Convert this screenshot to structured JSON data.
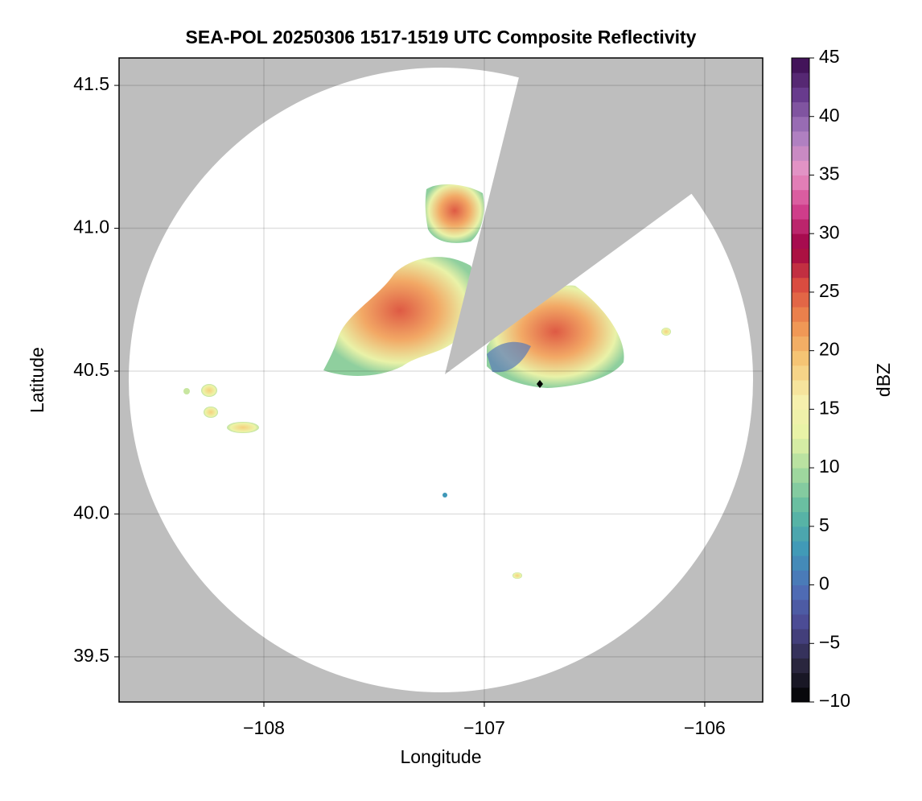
{
  "chart_data": {
    "type": "heatmap",
    "title": "SEA-POL 20250306 1517-1519 UTC Composite Reflectivity",
    "xlabel": "Longitude",
    "ylabel": "Latitude",
    "colorbar_label": "dBZ",
    "xlim": [
      -108.657,
      -105.737
    ],
    "ylim": [
      39.342,
      41.596
    ],
    "xticks": [
      {
        "value": -108,
        "label": "−108"
      },
      {
        "value": -107,
        "label": "−107"
      },
      {
        "value": -106,
        "label": "−106"
      }
    ],
    "yticks": [
      {
        "value": 39.5,
        "label": "39.5"
      },
      {
        "value": 40,
        "label": "40.0"
      },
      {
        "value": 40.5,
        "label": "40.5"
      },
      {
        "value": 41,
        "label": "41.0"
      },
      {
        "value": 41.5,
        "label": "41.5"
      }
    ],
    "clim": [
      -10,
      45
    ],
    "cticks": [
      {
        "value": -10,
        "label": "−10"
      },
      {
        "value": -5,
        "label": "−5"
      },
      0,
      5,
      10,
      15,
      20,
      25,
      30,
      35,
      40,
      45
    ],
    "colormap": [
      "#000000",
      "#2b2740",
      "#4b4790",
      "#4f6fb8",
      "#3f98b8",
      "#5cb8a2",
      "#9fd79e",
      "#e6f3a6",
      "#f7f0ae",
      "#f5c877",
      "#ef9050",
      "#da4d40",
      "#9e0142",
      "#d2418e",
      "#e996c6",
      "#a87dc0",
      "#6a3d8f",
      "#3a0a4d"
    ],
    "grid": true
  }
}
